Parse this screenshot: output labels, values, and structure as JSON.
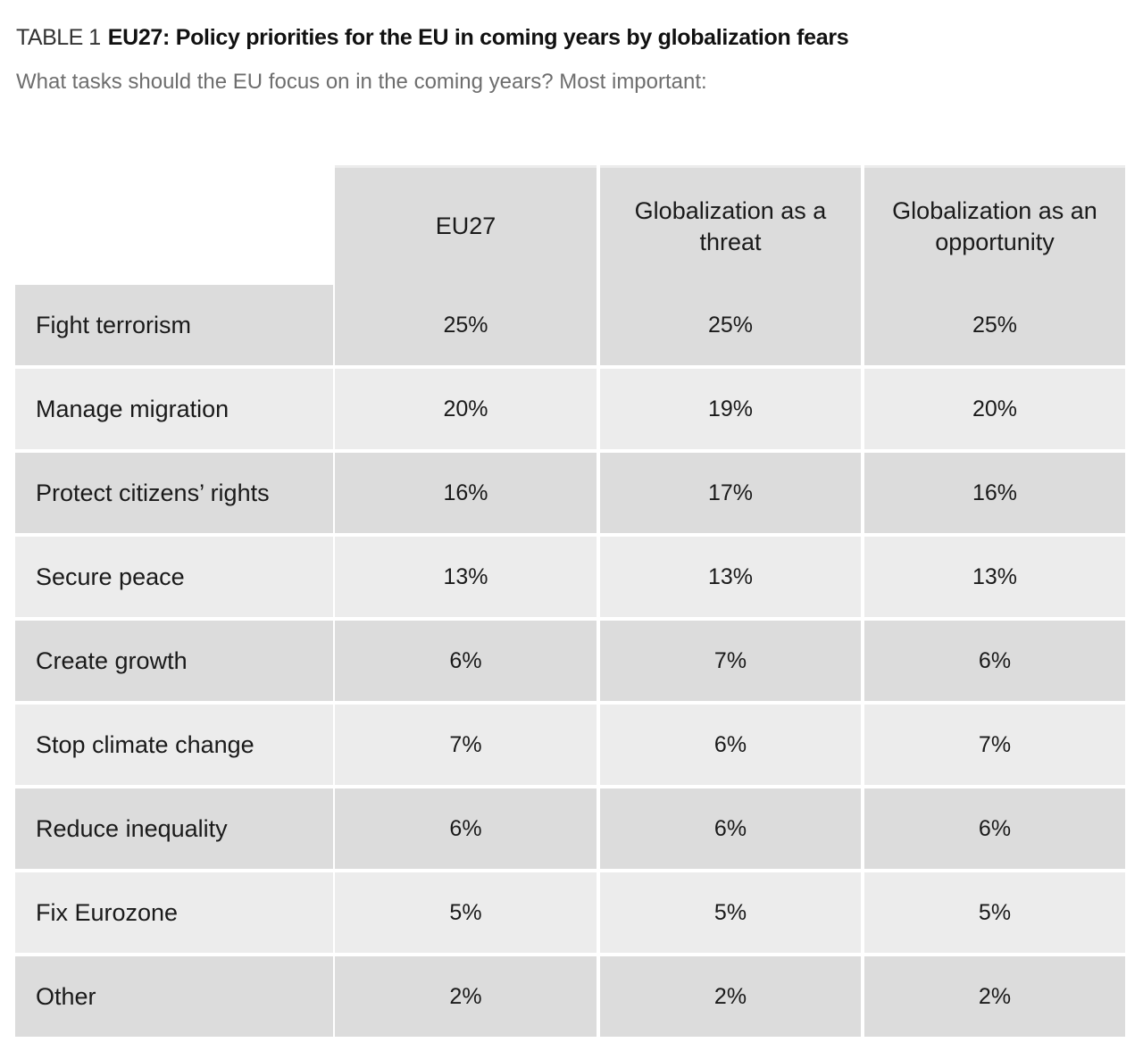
{
  "title": {
    "label": "TABLE 1",
    "text": "EU27: Policy priorities for the EU in coming years by globalization fears"
  },
  "subtitle": "What tasks should the EU focus on in the coming years? Most important:",
  "table": {
    "columns": [
      "EU27",
      "Globalization as a threat",
      "Globalization as an opportunity"
    ],
    "rows": [
      {
        "label": "Fight terrorism",
        "values": [
          "25%",
          "25%",
          "25%"
        ]
      },
      {
        "label": "Manage migration",
        "values": [
          "20%",
          "19%",
          "20%"
        ]
      },
      {
        "label": "Protect citizens’ rights",
        "values": [
          "16%",
          "17%",
          "16%"
        ]
      },
      {
        "label": "Secure peace",
        "values": [
          "13%",
          "13%",
          "13%"
        ]
      },
      {
        "label": "Create growth",
        "values": [
          "6%",
          "7%",
          "6%"
        ]
      },
      {
        "label": "Stop climate change",
        "values": [
          "7%",
          "6%",
          "7%"
        ]
      },
      {
        "label": "Reduce inequality",
        "values": [
          "6%",
          "6%",
          "6%"
        ]
      },
      {
        "label": "Fix Eurozone",
        "values": [
          "5%",
          "5%",
          "5%"
        ]
      },
      {
        "label": "Other",
        "values": [
          "2%",
          "2%",
          "2%"
        ]
      }
    ]
  },
  "colors": {
    "row_dark": "#dcdcdc",
    "row_light": "#ececec",
    "subtitle": "#6e6e6e"
  }
}
